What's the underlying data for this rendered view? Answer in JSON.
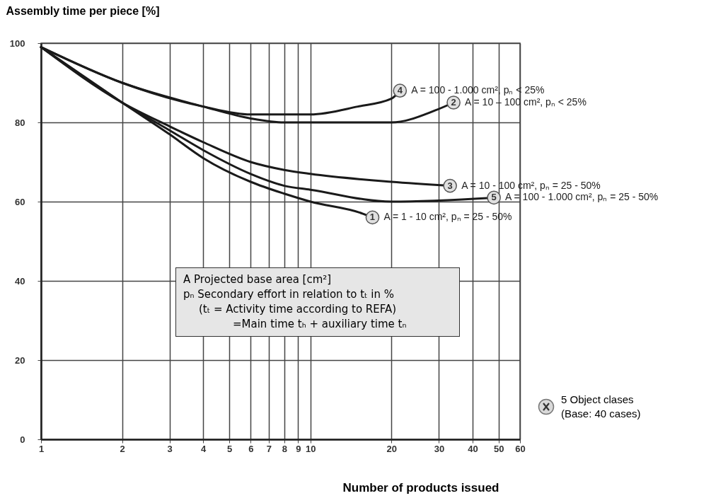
{
  "chart_data": {
    "type": "line",
    "xlabel": "Number of products issued",
    "ylabel": "Assembly time per piece [%]",
    "xlim": [
      1,
      60
    ],
    "ylim": [
      0,
      100
    ],
    "log": "x",
    "xticks": [
      1,
      2,
      3,
      4,
      5,
      6,
      7,
      8,
      9,
      10,
      20,
      30,
      40,
      50,
      60
    ],
    "yticks": [
      0,
      20,
      40,
      60,
      80,
      100
    ],
    "grid": true,
    "legend": false,
    "marker": "none",
    "line_style": "solid",
    "series": [
      {
        "name": "1",
        "color": "#1a1a1a",
        "x": [
          1,
          2,
          3,
          4,
          6,
          8,
          10,
          15.6,
          17
        ],
        "values": [
          99,
          85,
          77,
          71,
          65,
          62,
          60,
          57,
          56
        ]
      },
      {
        "name": "2",
        "color": "#1a1a1a",
        "x": [
          1,
          2,
          4,
          6,
          8,
          10,
          20,
          29,
          34
        ],
        "values": [
          99,
          90,
          84,
          81,
          80,
          80,
          80,
          83,
          85
        ]
      },
      {
        "name": "3",
        "color": "#1a1a1a",
        "x": [
          1,
          2,
          3,
          4,
          6,
          8,
          10,
          20,
          33
        ],
        "values": [
          99,
          85,
          79,
          75,
          70,
          68,
          67,
          65,
          64
        ]
      },
      {
        "name": "4",
        "color": "#1a1a1a",
        "x": [
          1,
          2,
          4,
          6,
          8,
          10,
          15,
          20,
          21.5
        ],
        "values": [
          99,
          90,
          84,
          82,
          82,
          82,
          84,
          86,
          88
        ]
      },
      {
        "name": "5",
        "color": "#1a1a1a",
        "x": [
          1,
          2,
          3,
          4,
          6,
          8,
          10,
          20,
          48
        ],
        "values": [
          99,
          85,
          78,
          73,
          67,
          64,
          63,
          60,
          61
        ]
      }
    ],
    "annotations": [
      "A = 1 - 10 cm², pₙ = 25 - 50%",
      "A = 10 – 100 cm², pₙ < 25%",
      "A = 10 - 100 cm², pₙ = 25 - 50%",
      "A = 100 - 1.000 cm², pₙ < 25%",
      "A = 100 - 1.000 cm², pₙ = 25 - 50%",
      "A  Projected base area [cm²]",
      "pₙ Secondary effort in relation to tₜ in %",
      "(tₜ  = Activity time according to REFA)",
      "=Main time tₕ + auxiliary time tₙ",
      "5 Object clases",
      "(Base: 40 cases)"
    ]
  }
}
